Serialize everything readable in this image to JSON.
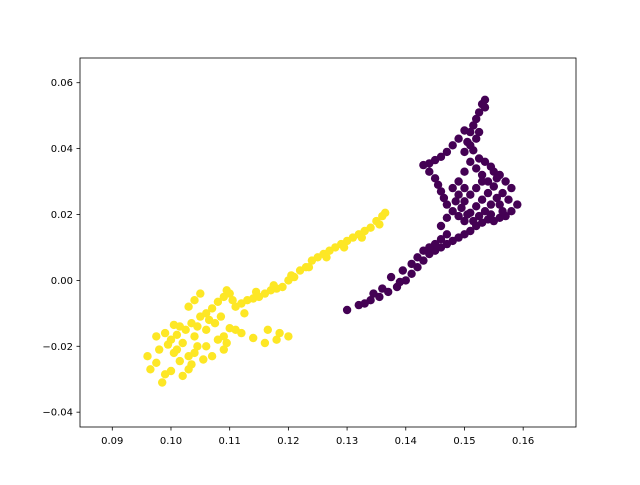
{
  "chart_data": {
    "type": "scatter",
    "title": "",
    "xlabel": "",
    "ylabel": "",
    "xlim": [
      0.0845,
      0.169
    ],
    "ylim": [
      -0.0445,
      0.0675
    ],
    "xticks": [
      0.09,
      0.1,
      0.11,
      0.12,
      0.13,
      0.14,
      0.15,
      0.16
    ],
    "xtick_labels": [
      "0.09",
      "0.10",
      "0.11",
      "0.12",
      "0.13",
      "0.14",
      "0.15",
      "0.16"
    ],
    "yticks": [
      -0.04,
      -0.02,
      0.0,
      0.02,
      0.04,
      0.06
    ],
    "ytick_labels": [
      "−0.04",
      "−0.02",
      "0.00",
      "0.02",
      "0.04",
      "0.06"
    ],
    "grid": false,
    "legend": "none",
    "series": [
      {
        "color": "#fde725",
        "points": [
          [
            0.096,
            -0.023
          ],
          [
            0.0975,
            -0.025
          ],
          [
            0.0965,
            -0.027
          ],
          [
            0.0985,
            -0.031
          ],
          [
            0.099,
            -0.0285
          ],
          [
            0.098,
            -0.021
          ],
          [
            0.0995,
            -0.0195
          ],
          [
            0.1,
            -0.018
          ],
          [
            0.101,
            -0.0165
          ],
          [
            0.1005,
            -0.022
          ],
          [
            0.1015,
            -0.0245
          ],
          [
            0.1,
            -0.0275
          ],
          [
            0.102,
            -0.029
          ],
          [
            0.103,
            -0.027
          ],
          [
            0.1025,
            -0.015
          ],
          [
            0.1035,
            -0.013
          ],
          [
            0.1045,
            -0.014
          ],
          [
            0.105,
            -0.011
          ],
          [
            0.106,
            -0.01
          ],
          [
            0.107,
            -0.0085
          ],
          [
            0.108,
            -0.0065
          ],
          [
            0.109,
            -0.005
          ],
          [
            0.11,
            -0.004
          ],
          [
            0.1095,
            -0.003
          ],
          [
            0.1105,
            -0.006
          ],
          [
            0.111,
            -0.008
          ],
          [
            0.112,
            -0.007
          ],
          [
            0.113,
            -0.006
          ],
          [
            0.114,
            -0.0055
          ],
          [
            0.115,
            -0.005
          ],
          [
            0.116,
            -0.004
          ],
          [
            0.117,
            -0.003
          ],
          [
            0.118,
            -0.0025
          ],
          [
            0.119,
            -0.002
          ],
          [
            0.12,
            0.0
          ],
          [
            0.121,
            0.001
          ],
          [
            0.122,
            0.003
          ],
          [
            0.123,
            0.004
          ],
          [
            0.124,
            0.006
          ],
          [
            0.125,
            0.007
          ],
          [
            0.126,
            0.008
          ],
          [
            0.127,
            0.009
          ],
          [
            0.128,
            0.01
          ],
          [
            0.129,
            0.011
          ],
          [
            0.13,
            0.012
          ],
          [
            0.131,
            0.013
          ],
          [
            0.132,
            0.014
          ],
          [
            0.133,
            0.015
          ],
          [
            0.134,
            0.016
          ],
          [
            0.135,
            0.018
          ],
          [
            0.136,
            0.0195
          ],
          [
            0.1365,
            0.0205
          ],
          [
            0.1355,
            0.017
          ],
          [
            0.1325,
            0.013
          ],
          [
            0.1295,
            0.01
          ],
          [
            0.1265,
            0.007
          ],
          [
            0.1235,
            0.004
          ],
          [
            0.1205,
            0.0015
          ],
          [
            0.1175,
            -0.0015
          ],
          [
            0.1145,
            -0.0035
          ],
          [
            0.1125,
            -0.01
          ],
          [
            0.11,
            -0.0145
          ],
          [
            0.112,
            -0.016
          ],
          [
            0.114,
            -0.0175
          ],
          [
            0.116,
            -0.019
          ],
          [
            0.118,
            -0.018
          ],
          [
            0.12,
            -0.017
          ],
          [
            0.1185,
            -0.016
          ],
          [
            0.1165,
            -0.015
          ],
          [
            0.111,
            -0.015
          ],
          [
            0.108,
            -0.018
          ],
          [
            0.106,
            -0.02
          ],
          [
            0.104,
            -0.022
          ],
          [
            0.1055,
            -0.024
          ],
          [
            0.107,
            -0.023
          ],
          [
            0.109,
            -0.021
          ],
          [
            0.1035,
            -0.0255
          ],
          [
            0.101,
            -0.021
          ],
          [
            0.102,
            -0.019
          ],
          [
            0.104,
            -0.017
          ],
          [
            0.106,
            -0.015
          ],
          [
            0.1075,
            -0.013
          ],
          [
            0.1065,
            -0.012
          ],
          [
            0.1085,
            -0.011
          ],
          [
            0.1045,
            -0.02
          ],
          [
            0.1015,
            -0.014
          ],
          [
            0.105,
            -0.004
          ],
          [
            0.103,
            -0.008
          ],
          [
            0.104,
            -0.006
          ],
          [
            0.0975,
            -0.017
          ],
          [
            0.099,
            -0.016
          ],
          [
            0.1005,
            -0.0135
          ],
          [
            0.103,
            -0.023
          ],
          [
            0.109,
            -0.017
          ],
          [
            0.1095,
            -0.019
          ]
        ]
      },
      {
        "color": "#440154",
        "points": [
          [
            0.13,
            -0.009
          ],
          [
            0.132,
            -0.0075
          ],
          [
            0.134,
            -0.006
          ],
          [
            0.1355,
            -0.005
          ],
          [
            0.137,
            -0.0035
          ],
          [
            0.1385,
            -0.002
          ],
          [
            0.14,
            0.0
          ],
          [
            0.141,
            0.002
          ],
          [
            0.142,
            0.004
          ],
          [
            0.143,
            0.006
          ],
          [
            0.144,
            0.008
          ],
          [
            0.145,
            0.009
          ],
          [
            0.146,
            0.01
          ],
          [
            0.147,
            0.011
          ],
          [
            0.148,
            0.012
          ],
          [
            0.149,
            0.013
          ],
          [
            0.15,
            0.014
          ],
          [
            0.151,
            0.015
          ],
          [
            0.152,
            0.0165
          ],
          [
            0.153,
            0.0175
          ],
          [
            0.154,
            0.0185
          ],
          [
            0.155,
            0.018
          ],
          [
            0.156,
            0.019
          ],
          [
            0.157,
            0.0195
          ],
          [
            0.158,
            0.021
          ],
          [
            0.159,
            0.023
          ],
          [
            0.1575,
            0.0245
          ],
          [
            0.1565,
            0.0265
          ],
          [
            0.158,
            0.028
          ],
          [
            0.157,
            0.03
          ],
          [
            0.156,
            0.032
          ],
          [
            0.155,
            0.033
          ],
          [
            0.1545,
            0.0345
          ],
          [
            0.1535,
            0.036
          ],
          [
            0.1525,
            0.037
          ],
          [
            0.1515,
            0.0395
          ],
          [
            0.1505,
            0.042
          ],
          [
            0.151,
            0.045
          ],
          [
            0.1515,
            0.047
          ],
          [
            0.152,
            0.049
          ],
          [
            0.1525,
            0.051
          ],
          [
            0.153,
            0.0535
          ],
          [
            0.1535,
            0.0548
          ],
          [
            0.15,
            0.0455
          ],
          [
            0.149,
            0.043
          ],
          [
            0.148,
            0.041
          ],
          [
            0.147,
            0.039
          ],
          [
            0.146,
            0.0375
          ],
          [
            0.145,
            0.0365
          ],
          [
            0.144,
            0.0355
          ],
          [
            0.143,
            0.035
          ],
          [
            0.144,
            0.033
          ],
          [
            0.145,
            0.031
          ],
          [
            0.1455,
            0.029
          ],
          [
            0.146,
            0.027
          ],
          [
            0.1465,
            0.025
          ],
          [
            0.147,
            0.023
          ],
          [
            0.148,
            0.021
          ],
          [
            0.149,
            0.0195
          ],
          [
            0.15,
            0.018
          ],
          [
            0.151,
            0.0205
          ],
          [
            0.152,
            0.0225
          ],
          [
            0.153,
            0.0245
          ],
          [
            0.154,
            0.0265
          ],
          [
            0.155,
            0.0285
          ],
          [
            0.154,
            0.03
          ],
          [
            0.153,
            0.032
          ],
          [
            0.152,
            0.034
          ],
          [
            0.151,
            0.036
          ],
          [
            0.15,
            0.033
          ],
          [
            0.149,
            0.03
          ],
          [
            0.148,
            0.028
          ],
          [
            0.149,
            0.026
          ],
          [
            0.15,
            0.024
          ],
          [
            0.151,
            0.026
          ],
          [
            0.152,
            0.028
          ],
          [
            0.153,
            0.03
          ],
          [
            0.15,
            0.028
          ],
          [
            0.1485,
            0.024
          ],
          [
            0.1495,
            0.022
          ],
          [
            0.1505,
            0.02
          ],
          [
            0.1515,
            0.018
          ],
          [
            0.1525,
            0.0195
          ],
          [
            0.1535,
            0.021
          ],
          [
            0.1545,
            0.023
          ],
          [
            0.1555,
            0.025
          ],
          [
            0.156,
            0.023
          ],
          [
            0.1565,
            0.021
          ],
          [
            0.1545,
            0.02
          ],
          [
            0.1555,
            0.031
          ],
          [
            0.147,
            0.014
          ],
          [
            0.146,
            0.0125
          ],
          [
            0.145,
            0.011
          ],
          [
            0.144,
            0.01
          ],
          [
            0.143,
            0.009
          ],
          [
            0.142,
            0.007
          ],
          [
            0.141,
            0.005
          ],
          [
            0.1395,
            0.003
          ],
          [
            0.1375,
            0.001
          ],
          [
            0.136,
            -0.0025
          ],
          [
            0.1345,
            -0.004
          ],
          [
            0.133,
            -0.007
          ],
          [
            0.139,
            -0.0005
          ],
          [
            0.146,
            0.0165
          ],
          [
            0.147,
            0.019
          ],
          [
            0.15,
            0.039
          ],
          [
            0.151,
            0.041
          ],
          [
            0.152,
            0.043
          ],
          [
            0.1525,
            0.045
          ],
          [
            0.1535,
            0.0525
          ]
        ]
      }
    ]
  }
}
